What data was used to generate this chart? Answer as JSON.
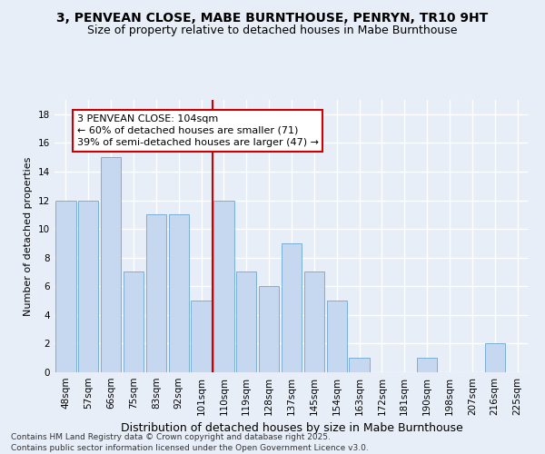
{
  "title1": "3, PENVEAN CLOSE, MABE BURNTHOUSE, PENRYN, TR10 9HT",
  "title2": "Size of property relative to detached houses in Mabe Burnthouse",
  "xlabel": "Distribution of detached houses by size in Mabe Burnthouse",
  "ylabel": "Number of detached properties",
  "categories": [
    "48sqm",
    "57sqm",
    "66sqm",
    "75sqm",
    "83sqm",
    "92sqm",
    "101sqm",
    "110sqm",
    "119sqm",
    "128sqm",
    "137sqm",
    "145sqm",
    "154sqm",
    "163sqm",
    "172sqm",
    "181sqm",
    "190sqm",
    "198sqm",
    "207sqm",
    "216sqm",
    "225sqm"
  ],
  "values": [
    12,
    12,
    15,
    7,
    11,
    11,
    5,
    12,
    7,
    6,
    9,
    7,
    5,
    1,
    0,
    0,
    1,
    0,
    0,
    2,
    0
  ],
  "bar_color": "#c5d8f0",
  "bar_edge_color": "#7bafd4",
  "vline_index": 6,
  "annotation_line1": "3 PENVEAN CLOSE: 104sqm",
  "annotation_line2": "← 60% of detached houses are smaller (71)",
  "annotation_line3": "39% of semi-detached houses are larger (47) →",
  "annotation_box_color": "#ffffff",
  "annotation_box_edge_color": "#cc0000",
  "vline_color": "#cc0000",
  "background_color": "#e8eef7",
  "grid_color": "#ffffff",
  "footer": "Contains HM Land Registry data © Crown copyright and database right 2025.\nContains public sector information licensed under the Open Government Licence v3.0.",
  "ylim": [
    0,
    19
  ],
  "yticks": [
    0,
    2,
    4,
    6,
    8,
    10,
    12,
    14,
    16,
    18
  ],
  "title_fontsize": 10,
  "subtitle_fontsize": 9,
  "xlabel_fontsize": 9,
  "ylabel_fontsize": 8,
  "tick_fontsize": 7.5,
  "annotation_fontsize": 8,
  "footer_fontsize": 6.5
}
